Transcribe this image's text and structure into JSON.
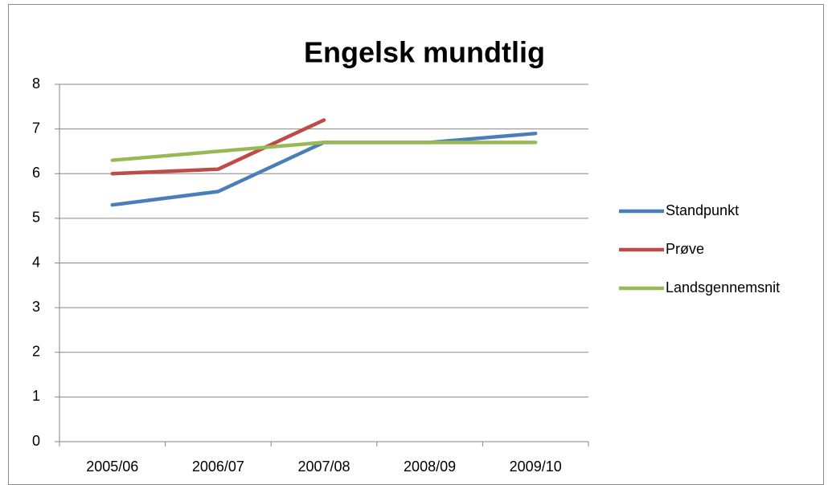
{
  "chart_data": {
    "type": "line",
    "title": "Engelsk mundtlig",
    "categories": [
      "2005/06",
      "2006/07",
      "2007/08",
      "2008/09",
      "2009/10"
    ],
    "series": [
      {
        "name": "Standpunkt",
        "color": "#4a7ebb",
        "values": [
          5.3,
          5.6,
          6.7,
          6.7,
          6.9
        ]
      },
      {
        "name": "Prøve",
        "color": "#be4b48",
        "values": [
          6.0,
          6.1,
          7.2,
          null,
          null
        ]
      },
      {
        "name": "Landsgennemsnit",
        "color": "#98b954",
        "values": [
          6.3,
          6.5,
          6.7,
          6.7,
          6.7
        ]
      }
    ],
    "ylim": [
      0,
      8
    ],
    "yticks": [
      0,
      1,
      2,
      3,
      4,
      5,
      6,
      7,
      8
    ],
    "grid": true,
    "legend": "right"
  }
}
